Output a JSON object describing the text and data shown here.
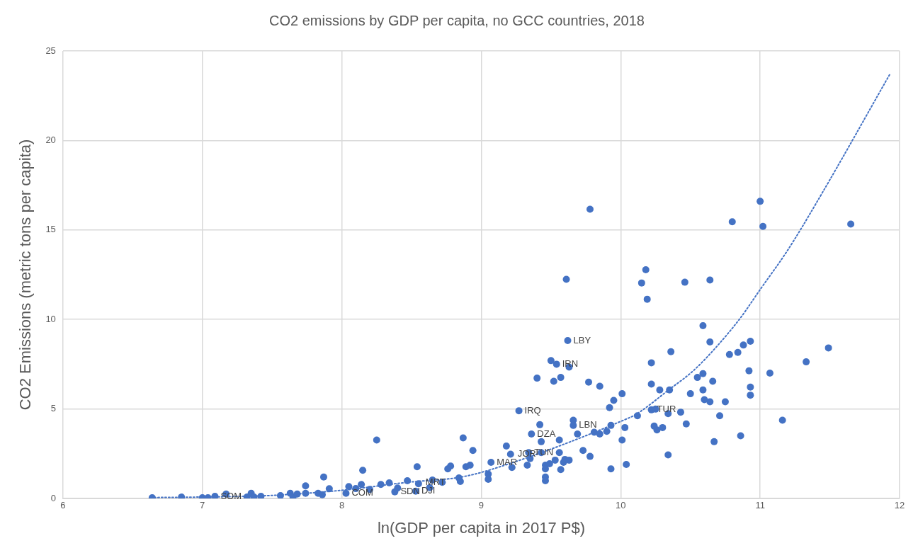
{
  "chart_data": {
    "type": "scatter",
    "title": "CO2 emissions by GDP per capita, no GCC countries, 2018",
    "xlabel": "ln(GDP per capita in 2017 P$)",
    "ylabel": "CO2 Emissions (metric tons per capita)",
    "xlim": [
      6,
      12
    ],
    "xticks": [
      6,
      7,
      8,
      9,
      10,
      11,
      12
    ],
    "ylim": [
      0,
      25
    ],
    "yticks": [
      0,
      5,
      10,
      15,
      20,
      25
    ],
    "grid": true,
    "legend": false,
    "series": [
      {
        "type": "scatter",
        "color": "#4472c4",
        "marker": "circle",
        "x": [
          6.64,
          6.85,
          7.0,
          7.04,
          7.09,
          7.17,
          7.32,
          7.35,
          7.37,
          7.42,
          7.56,
          7.63,
          7.65,
          7.68,
          7.74,
          7.74,
          7.83,
          7.86,
          7.87,
          7.91,
          8.03,
          8.05,
          8.1,
          8.14,
          8.15,
          8.2,
          8.25,
          8.28,
          8.34,
          8.38,
          8.4,
          8.47,
          8.53,
          8.54,
          8.55,
          8.63,
          8.65,
          8.72,
          8.76,
          8.78,
          8.84,
          8.85,
          8.87,
          8.89,
          8.92,
          8.94,
          9.05,
          9.05,
          9.07,
          9.18,
          9.21,
          9.22,
          9.27,
          9.33,
          9.34,
          9.35,
          9.36,
          9.4,
          9.42,
          9.43,
          9.43,
          9.46,
          9.46,
          9.46,
          9.46,
          9.49,
          9.5,
          9.52,
          9.53,
          9.54,
          9.56,
          9.56,
          9.57,
          9.57,
          9.59,
          9.6,
          9.61,
          9.62,
          9.63,
          9.63,
          9.66,
          9.66,
          9.69,
          9.73,
          9.77,
          9.78,
          9.78,
          9.81,
          9.85,
          9.85,
          9.9,
          9.92,
          9.93,
          9.93,
          9.95,
          10.01,
          10.01,
          10.03,
          10.04,
          10.12,
          10.15,
          10.18,
          10.19,
          10.22,
          10.22,
          10.22,
          10.24,
          10.25,
          10.26,
          10.28,
          10.3,
          10.34,
          10.34,
          10.35,
          10.36,
          10.43,
          10.46,
          10.47,
          10.5,
          10.55,
          10.59,
          10.59,
          10.59,
          10.6,
          10.64,
          10.64,
          10.64,
          10.66,
          10.67,
          10.71,
          10.75,
          10.78,
          10.8,
          10.84,
          10.86,
          10.88,
          10.92,
          10.93,
          10.93,
          10.93,
          11.0,
          11.02,
          11.07,
          11.16,
          11.33,
          11.49,
          11.65
        ],
        "values": [
          0.04,
          0.08,
          0.04,
          0.04,
          0.12,
          0.25,
          0.08,
          0.29,
          0.08,
          0.12,
          0.16,
          0.29,
          0.08,
          0.25,
          0.7,
          0.29,
          0.29,
          0.21,
          1.2,
          0.54,
          0.29,
          0.66,
          0.55,
          0.78,
          1.57,
          0.5,
          3.26,
          0.78,
          0.87,
          0.37,
          0.58,
          0.99,
          0.41,
          1.77,
          0.82,
          0.6,
          1.03,
          0.9,
          1.65,
          1.81,
          1.15,
          0.95,
          3.38,
          1.77,
          1.86,
          2.68,
          1.36,
          1.07,
          2.02,
          2.93,
          2.47,
          1.73,
          4.9,
          1.86,
          2.56,
          2.23,
          3.6,
          6.72,
          4.12,
          3.17,
          2.56,
          1.86,
          1.65,
          1.2,
          0.99,
          1.94,
          7.7,
          6.55,
          2.14,
          7.5,
          3.26,
          2.56,
          6.76,
          1.61,
          2.02,
          2.18,
          12.24,
          8.82,
          7.34,
          2.14,
          4.37,
          4.08,
          3.6,
          2.68,
          6.5,
          16.16,
          2.35,
          3.7,
          6.27,
          3.6,
          3.75,
          5.07,
          4.08,
          1.65,
          5.48,
          5.85,
          3.26,
          3.96,
          1.9,
          4.62,
          12.04,
          12.78,
          11.13,
          7.58,
          6.39,
          4.95,
          4.04,
          4.99,
          3.83,
          6.06,
          3.96,
          4.74,
          2.43,
          6.06,
          8.2,
          4.82,
          12.08,
          4.16,
          5.85,
          6.76,
          9.65,
          6.97,
          6.06,
          5.52,
          12.2,
          8.74,
          5.4,
          6.55,
          3.17,
          4.62,
          5.4,
          8.04,
          15.46,
          8.16,
          3.5,
          8.57,
          7.13,
          8.78,
          6.22,
          5.77,
          16.6,
          15.2,
          7.0,
          4.37,
          7.63,
          8.41,
          15.33
        ]
      },
      {
        "type": "line",
        "color": "#4472c4",
        "marker": "none",
        "line_style": "dotted",
        "x": [
          6.63,
          7.0,
          7.47,
          7.99,
          8.47,
          8.86,
          9.15,
          10.02,
          10.11,
          10.35,
          10.52,
          10.69,
          10.86,
          11.0,
          11.2,
          11.44,
          11.93
        ],
        "values": [
          0.05,
          0.08,
          0.16,
          0.45,
          0.9,
          1.2,
          1.81,
          4.37,
          4.7,
          6.1,
          7.13,
          8.5,
          10.1,
          11.67,
          13.9,
          17.0,
          23.7
        ]
      }
    ],
    "annotations": [
      {
        "text": "SOM",
        "x": 7.09,
        "y": 0.12
      },
      {
        "text": "COM",
        "x": 8.03,
        "y": 0.29
      },
      {
        "text": "SDN",
        "x": 8.38,
        "y": 0.37
      },
      {
        "text": "DJI",
        "x": 8.53,
        "y": 0.41
      },
      {
        "text": "MRT",
        "x": 8.56,
        "y": 0.91
      },
      {
        "text": "MAR",
        "x": 9.07,
        "y": 2.02
      },
      {
        "text": "JOR",
        "x": 9.22,
        "y": 2.47
      },
      {
        "text": "TUN",
        "x": 9.34,
        "y": 2.56
      },
      {
        "text": "DZA",
        "x": 9.36,
        "y": 3.6
      },
      {
        "text": "IRQ",
        "x": 9.27,
        "y": 4.9
      },
      {
        "text": "LBN",
        "x": 9.66,
        "y": 4.08
      },
      {
        "text": "IRN",
        "x": 9.54,
        "y": 7.5
      },
      {
        "text": "LBY",
        "x": 9.62,
        "y": 8.82
      },
      {
        "text": "TUR",
        "x": 10.22,
        "y": 4.95
      }
    ]
  }
}
